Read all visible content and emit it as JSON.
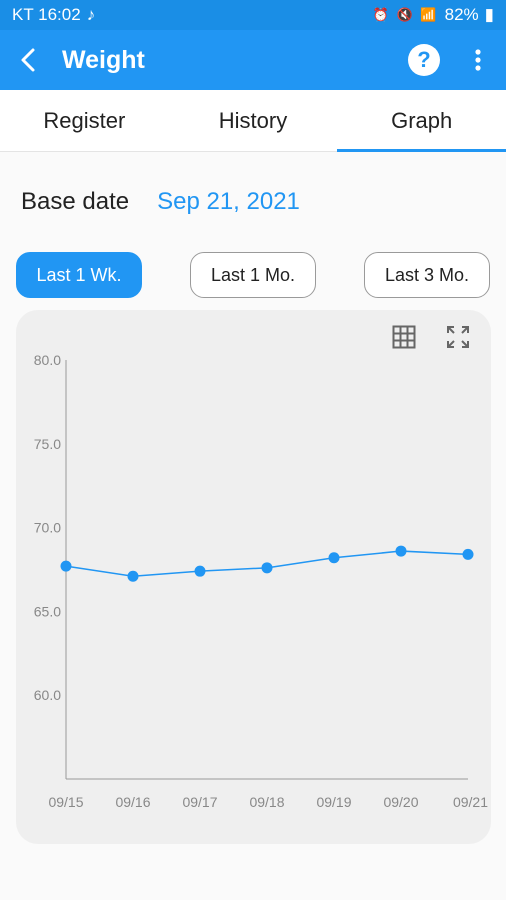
{
  "status_bar": {
    "carrier_time": "KT 16:02",
    "music_icon": "music-note-icon",
    "battery": "82%"
  },
  "app_bar": {
    "title": "Weight",
    "back_icon": "back-arrow-icon",
    "help_icon": "help-icon",
    "more_icon": "more-vert-icon"
  },
  "tabs": [
    {
      "label": "Register",
      "active": false
    },
    {
      "label": "History",
      "active": false
    },
    {
      "label": "Graph",
      "active": true
    }
  ],
  "base_date": {
    "label": "Base date",
    "value": "Sep 21, 2021"
  },
  "periods": [
    {
      "label": "Last 1 Wk.",
      "active": true
    },
    {
      "label": "Last 1 Mo.",
      "active": false
    },
    {
      "label": "Last 3 Mo.",
      "active": false
    }
  ],
  "colors": {
    "accent": "#2196f3",
    "status_bar": "#1a8ee6",
    "line": "#2196f3"
  },
  "chart_data": {
    "type": "line",
    "categories": [
      "09/15",
      "09/16",
      "09/17",
      "09/18",
      "09/19",
      "09/20",
      "09/21"
    ],
    "series": [
      {
        "values": [
          67.7,
          67.1,
          67.4,
          67.6,
          68.2,
          68.6,
          68.4
        ]
      }
    ],
    "ylim": [
      55.0,
      80.0
    ],
    "yticks": [
      "80.0",
      "75.0",
      "70.0",
      "65.0",
      "60.0"
    ],
    "grid": false
  }
}
